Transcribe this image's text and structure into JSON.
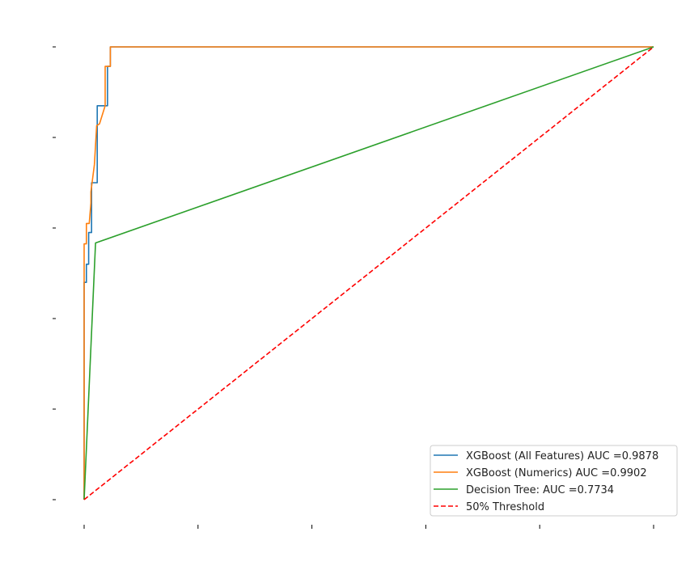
{
  "chart_data": {
    "type": "line",
    "title": "",
    "xlabel": "",
    "ylabel": "",
    "xlim": [
      0,
      1
    ],
    "ylim": [
      0,
      1
    ],
    "x_ticks": [
      0,
      0.2,
      0.4,
      0.6,
      0.8,
      1.0
    ],
    "y_ticks": [
      0,
      0.2,
      0.4,
      0.6,
      0.8,
      1.0
    ],
    "tick_labels_visible": false,
    "grid": false,
    "legend_position": "lower-right",
    "series": [
      {
        "name": "XGBoost (All Features) AUC =0.9878",
        "color": "#1f77b4",
        "style": "solid",
        "x": [
          0.0,
          0.0,
          0.004,
          0.004,
          0.008,
          0.008,
          0.013,
          0.013,
          0.023,
          0.023,
          0.041,
          0.041,
          0.046,
          0.046,
          1.0
        ],
        "y": [
          0.0,
          0.48,
          0.48,
          0.52,
          0.52,
          0.59,
          0.59,
          0.7,
          0.7,
          0.87,
          0.87,
          0.957,
          0.957,
          1.0,
          1.0
        ]
      },
      {
        "name": "XGBoost (Numerics) AUC =0.9902",
        "color": "#ff7f0e",
        "style": "solid",
        "x": [
          0.0,
          0.0,
          0.004,
          0.004,
          0.009,
          0.012,
          0.012,
          0.018,
          0.018,
          0.022,
          0.027,
          0.037,
          0.037,
          0.046,
          0.046,
          1.0
        ],
        "y": [
          0.0,
          0.565,
          0.565,
          0.61,
          0.61,
          0.655,
          0.68,
          0.74,
          0.74,
          0.826,
          0.83,
          0.87,
          0.957,
          0.957,
          1.0,
          1.0
        ]
      },
      {
        "name": "Decision Tree: AUC =0.7734",
        "color": "#2ca02c",
        "style": "solid",
        "x": [
          0.0,
          0.02,
          1.0
        ],
        "y": [
          0.0,
          0.567,
          1.0
        ]
      },
      {
        "name": "50% Threshold",
        "color": "#ff0000",
        "style": "dashed",
        "x": [
          0.0,
          1.0
        ],
        "y": [
          0.0,
          1.0
        ]
      }
    ]
  }
}
